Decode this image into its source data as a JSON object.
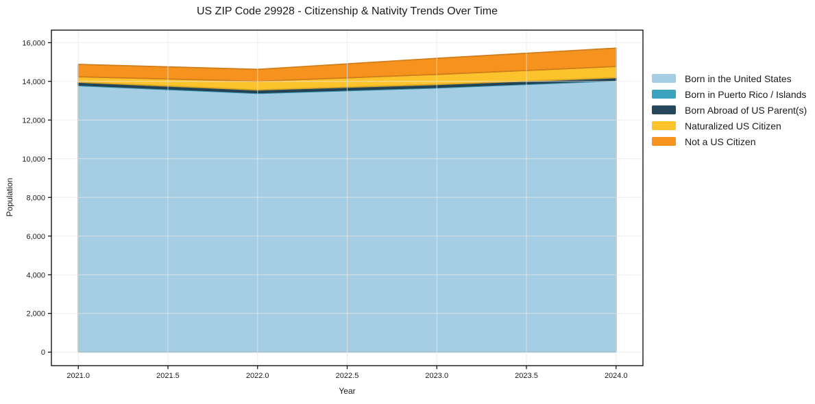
{
  "title": "US ZIP Code 29928 - Citizenship & Nativity Trends Over Time",
  "axes": {
    "x_label": "Year",
    "y_label": "Population",
    "x_tick_labels": [
      "2021.0",
      "2021.5",
      "2022.0",
      "2022.5",
      "2023.0",
      "2023.5",
      "2024.0"
    ],
    "y_tick_labels": [
      "0",
      "2,000",
      "4,000",
      "6,000",
      "8,000",
      "10,000",
      "12,000",
      "14,000",
      "16,000"
    ]
  },
  "chart_data": {
    "type": "area",
    "stacked": true,
    "title": "US ZIP Code 29928 - Citizenship & Nativity Trends Over Time",
    "xlabel": "Year",
    "ylabel": "Population",
    "x": [
      2021,
      2022,
      2023,
      2024
    ],
    "series": [
      {
        "name": "Born in the United States",
        "color": "#a5cde3",
        "values": [
          13780,
          13380,
          13660,
          14030
        ]
      },
      {
        "name": "Born in Puerto Rico / Islands",
        "color": "#3ba3c0",
        "values": [
          40,
          40,
          40,
          40
        ]
      },
      {
        "name": "Born Abroad of US Parent(s)",
        "color": "#27485c",
        "values": [
          140,
          140,
          140,
          120
        ]
      },
      {
        "name": "Naturalized US Citizen",
        "color": "#fcc32d",
        "values": [
          280,
          450,
          520,
          580
        ]
      },
      {
        "name": "Not a US Citizen",
        "color": "#f6931e",
        "values": [
          640,
          610,
          830,
          950
        ]
      }
    ],
    "stack_totals": [
      14880,
      14620,
      15190,
      15720
    ],
    "x_ticks": [
      2021.0,
      2021.5,
      2022.0,
      2022.5,
      2023.0,
      2023.5,
      2024.0
    ],
    "y_ticks": [
      0,
      2000,
      4000,
      6000,
      8000,
      10000,
      12000,
      14000,
      16000
    ],
    "xlim": [
      2020.85,
      2024.15
    ],
    "ylim": [
      -700,
      16650
    ],
    "grid": true,
    "grid_color": "#e8e8e8",
    "spine_color": "#000000",
    "tick_label_color": "#1a1a1a",
    "legend_position": "outside-right"
  }
}
